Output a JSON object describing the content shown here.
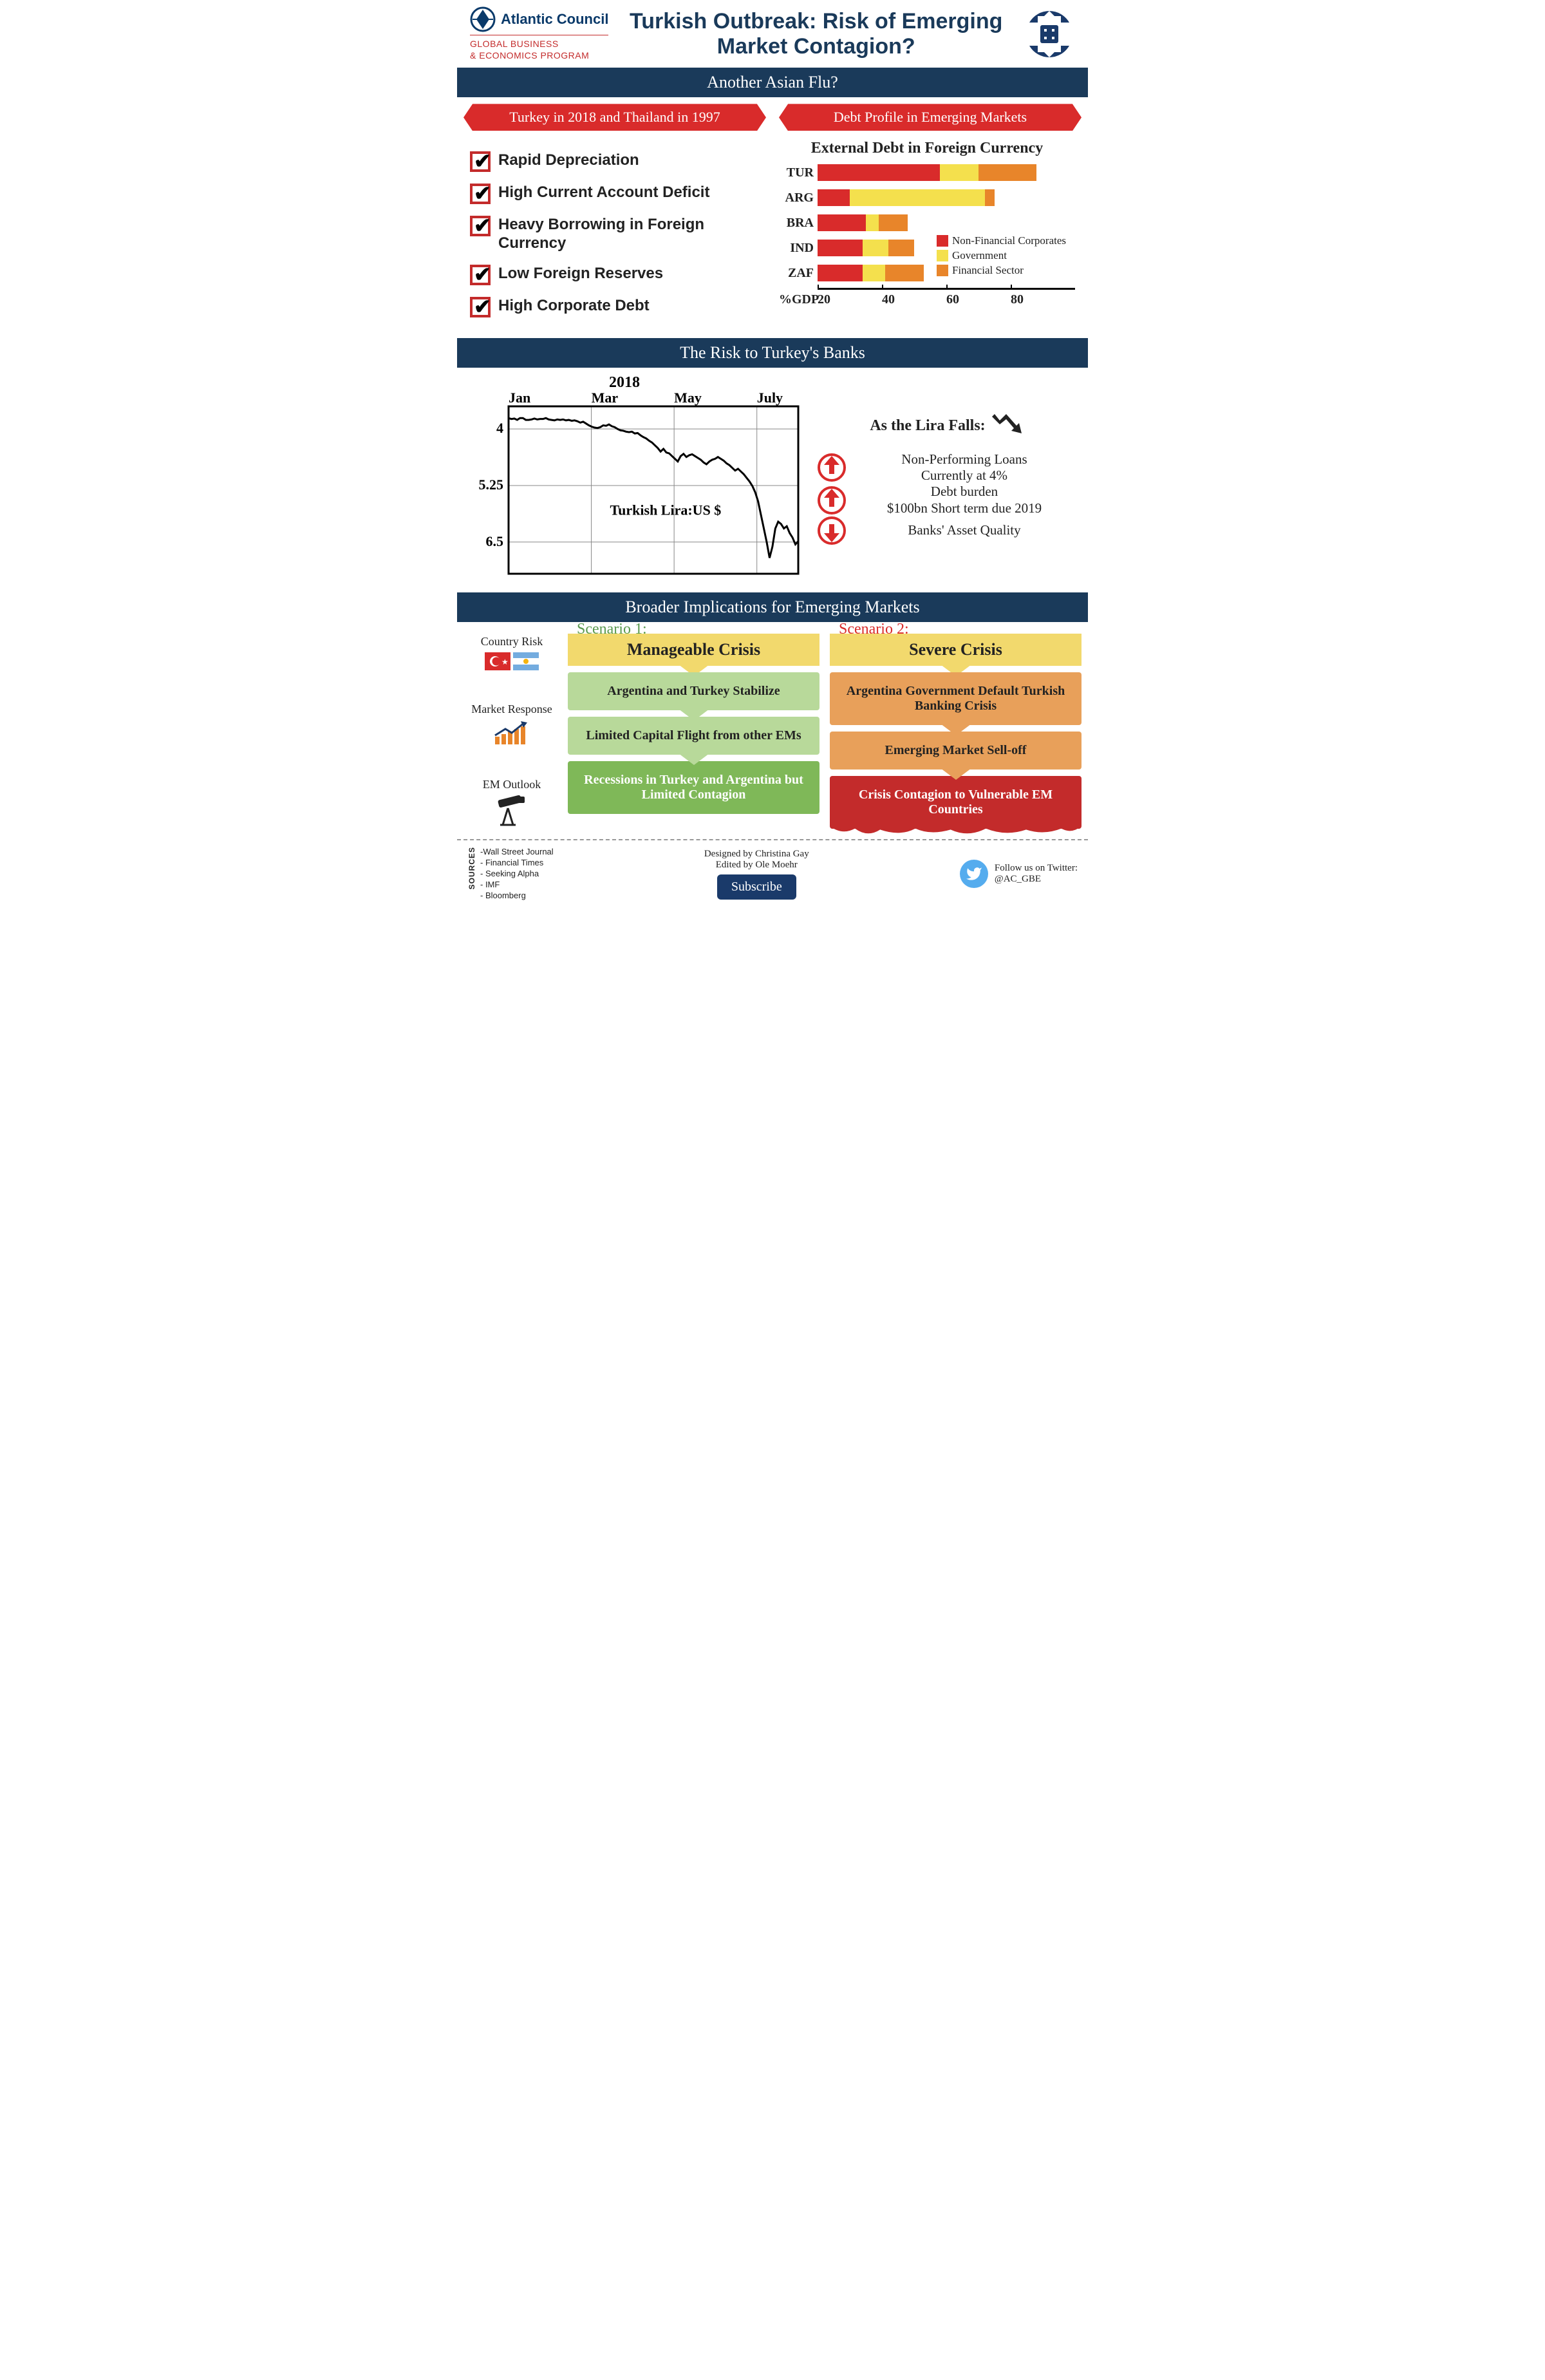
{
  "header": {
    "org": "Atlantic Council",
    "program1": "GLOBAL BUSINESS",
    "program2": "& ECONOMICS PROGRAM",
    "title": "Turkish Outbreak: Risk of Emerging Market Contagion?"
  },
  "section1": {
    "bar_title": "Another Asian Flu?",
    "ribbon_left": "Turkey in 2018 and Thailand in 1997",
    "ribbon_right": "Debt Profile in Emerging Markets",
    "checks": [
      "Rapid Depreciation",
      "High Current Account Deficit",
      "Heavy Borrowing in Foreign Currency",
      "Low Foreign Reserves",
      "High Corporate Debt"
    ],
    "debt_chart": {
      "title": "External Debt in Foreign Currency",
      "xlabel": "%GDP",
      "xmax": 80,
      "xticks": [
        20,
        40,
        60,
        80
      ],
      "colors": {
        "nonfin": "#d92b2b",
        "gov": "#f4e04d",
        "fin": "#e8852a"
      },
      "countries": [
        {
          "code": "TUR",
          "nonfin": 38,
          "gov": 12,
          "fin": 18
        },
        {
          "code": "ARG",
          "nonfin": 10,
          "gov": 42,
          "fin": 3
        },
        {
          "code": "BRA",
          "nonfin": 15,
          "gov": 4,
          "fin": 9
        },
        {
          "code": "IND",
          "nonfin": 14,
          "gov": 8,
          "fin": 8
        },
        {
          "code": "ZAF",
          "nonfin": 14,
          "gov": 7,
          "fin": 12
        }
      ],
      "legend": [
        {
          "label": "Non-Financial Corporates",
          "key": "nonfin"
        },
        {
          "label": "Government",
          "key": "gov"
        },
        {
          "label": "Financial Sector",
          "key": "fin"
        }
      ]
    }
  },
  "section2": {
    "bar_title": "The Risk to Turkey's Banks",
    "year": "2018",
    "x_labels": [
      "Jan",
      "Mar",
      "May",
      "July"
    ],
    "y_ticks": [
      4,
      5.25,
      6.5
    ],
    "y_min": 3.5,
    "y_max": 7.2,
    "series_label": "Turkish Lira:US $",
    "line_color": "#000000",
    "data": [
      3.76,
      3.78,
      3.77,
      3.8,
      3.76,
      3.76,
      3.8,
      3.8,
      3.79,
      3.77,
      3.79,
      3.78,
      3.78,
      3.76,
      3.79,
      3.8,
      3.81,
      3.79,
      3.8,
      3.79,
      3.81,
      3.8,
      3.82,
      3.81,
      3.83,
      3.86,
      3.84,
      3.88,
      3.92,
      3.95,
      3.97,
      3.98,
      3.96,
      3.92,
      3.93,
      3.9,
      3.94,
      3.96,
      4.0,
      4.03,
      4.04,
      4.06,
      4.07,
      4.06,
      4.1,
      4.09,
      4.14,
      4.18,
      4.21,
      4.26,
      4.3,
      4.36,
      4.42,
      4.5,
      4.44,
      4.52,
      4.54,
      4.6,
      4.66,
      4.72,
      4.6,
      4.55,
      4.62,
      4.58,
      4.56,
      4.6,
      4.64,
      4.68,
      4.74,
      4.78,
      4.72,
      4.68,
      4.66,
      4.62,
      4.66,
      4.7,
      4.76,
      4.8,
      4.86,
      4.92,
      4.88,
      4.94,
      5.0,
      5.08,
      5.16,
      5.26,
      5.4,
      5.6,
      5.9,
      6.2,
      6.5,
      6.85,
      6.6,
      6.2,
      6.05,
      6.1,
      6.2,
      6.15,
      6.3,
      6.4,
      6.55,
      6.48
    ],
    "lira_head": "As the Lira Falls:",
    "points": [
      {
        "dir": "up",
        "text1": "Non-Performing Loans",
        "text2": "Currently at 4%"
      },
      {
        "dir": "up",
        "text1": "Debt burden",
        "text2": "$100bn Short term due 2019"
      },
      {
        "dir": "down",
        "text1": "Banks' Asset Quality",
        "text2": ""
      }
    ]
  },
  "section3": {
    "bar_title": "Broader Implications for Emerging Markets",
    "left_labels": [
      "Country Risk",
      "Market Response",
      "EM Outlook"
    ],
    "scenarios": [
      {
        "tag": "Scenario 1:",
        "tag_color": "#5a9a4f",
        "head": "Manageable Crisis",
        "head_bg": "#f2d96d",
        "boxes": [
          {
            "text": "Argentina and Turkey Stabilize",
            "bg": "#b8d99a"
          },
          {
            "text": "Limited Capital Flight from other EMs",
            "bg": "#b8d99a"
          },
          {
            "text": "Recessions in Turkey and Argentina but Limited Contagion",
            "bg": "#7fb858",
            "final": true
          }
        ]
      },
      {
        "tag": "Scenario 2:",
        "tag_color": "#d92b2b",
        "head": "Severe Crisis",
        "head_bg": "#f2d96d",
        "boxes": [
          {
            "text": "Argentina Government Default Turkish Banking Crisis",
            "bg": "#e8a05a"
          },
          {
            "text": "Emerging Market Sell-off",
            "bg": "#e8a05a"
          },
          {
            "text": "Crisis Contagion to Vulnerable EM Countries",
            "bg": "#c32b2b",
            "final": true,
            "drip": true
          }
        ]
      }
    ]
  },
  "footer": {
    "sources_label": "SOURCES",
    "sources": [
      "-Wall Street Journal",
      "- Financial Times",
      "- Seeking Alpha",
      "- IMF",
      "- Bloomberg"
    ],
    "credit1": "Designed by Christina Gay",
    "credit2": "Edited by Ole Moehr",
    "subscribe": "Subscribe",
    "twitter1": "Follow us on Twitter:",
    "twitter2": "@AC_GBE"
  }
}
